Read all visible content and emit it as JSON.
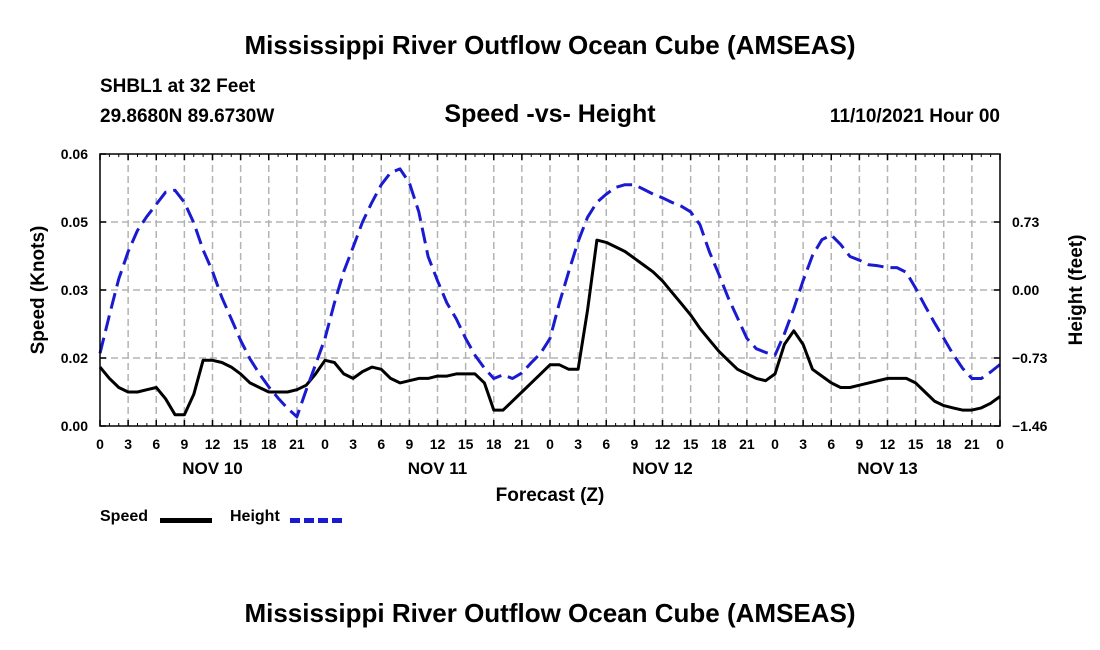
{
  "header": {
    "title": "Mississippi River Outflow Ocean Cube (AMSEAS)",
    "station": "SHBL1 at 32 Feet",
    "coords": "29.8680N  89.6730W",
    "subtitle": "Speed -vs- Height",
    "datetime": "11/10/2021 Hour 00"
  },
  "footer": {
    "title": "Mississippi River Outflow Ocean Cube (AMSEAS)"
  },
  "legend": {
    "speed_label": "Speed",
    "height_label": "Height"
  },
  "chart_data": {
    "type": "line",
    "title": "Speed -vs- Height",
    "xlabel": "Forecast (Z)",
    "ylabel": "Speed (Knots)",
    "y2label": "Height (feet)",
    "xlim": [
      0,
      96
    ],
    "ylim": [
      0,
      0.06
    ],
    "y2lim": [
      -1.46,
      1.46
    ],
    "grid": true,
    "x_ticks": [
      0,
      3,
      6,
      9,
      12,
      15,
      18,
      21,
      24,
      27,
      30,
      33,
      36,
      39,
      42,
      45,
      48,
      51,
      54,
      57,
      60,
      63,
      66,
      69,
      72,
      75,
      78,
      81,
      84,
      87,
      90,
      93,
      96
    ],
    "x_tick_labels": [
      "0",
      "3",
      "6",
      "9",
      "12",
      "15",
      "18",
      "21",
      "0",
      "3",
      "6",
      "9",
      "12",
      "15",
      "18",
      "21",
      "0",
      "3",
      "6",
      "9",
      "12",
      "15",
      "18",
      "21",
      "0",
      "3",
      "6",
      "9",
      "12",
      "15",
      "18",
      "21",
      "0"
    ],
    "day_labels": [
      {
        "label": "NOV 10",
        "x": 12
      },
      {
        "label": "NOV 11",
        "x": 36
      },
      {
        "label": "NOV 12",
        "x": 60
      },
      {
        "label": "NOV 13",
        "x": 84
      }
    ],
    "y_ticks": [
      0.0,
      0.015,
      0.03,
      0.045,
      0.06
    ],
    "y_tick_labels": [
      "0.00",
      "0.02",
      "0.03",
      "0.05",
      "0.06"
    ],
    "y2_ticks": [
      -1.46,
      -0.73,
      0.0,
      0.73
    ],
    "y2_tick_labels": [
      "−1.46",
      "−0.73",
      "0.00",
      "0.73"
    ],
    "series": [
      {
        "name": "Speed",
        "axis": "left",
        "color": "#000000",
        "dash": "solid",
        "points": [
          [
            0,
            0.013
          ],
          [
            1,
            0.0105
          ],
          [
            2,
            0.0085
          ],
          [
            3,
            0.0075
          ],
          [
            4,
            0.0075
          ],
          [
            5,
            0.008
          ],
          [
            6,
            0.0085
          ],
          [
            7,
            0.006
          ],
          [
            8,
            0.0025
          ],
          [
            9,
            0.0025
          ],
          [
            10,
            0.007
          ],
          [
            11,
            0.0145
          ],
          [
            12,
            0.0145
          ],
          [
            13,
            0.014
          ],
          [
            14,
            0.013
          ],
          [
            15,
            0.0115
          ],
          [
            16,
            0.0095
          ],
          [
            17,
            0.0085
          ],
          [
            18,
            0.0075
          ],
          [
            19,
            0.0075
          ],
          [
            20,
            0.0075
          ],
          [
            21,
            0.008
          ],
          [
            22,
            0.009
          ],
          [
            23,
            0.0115
          ],
          [
            24,
            0.0145
          ],
          [
            25,
            0.014
          ],
          [
            26,
            0.0115
          ],
          [
            27,
            0.0105
          ],
          [
            28,
            0.012
          ],
          [
            29,
            0.013
          ],
          [
            30,
            0.0125
          ],
          [
            31,
            0.0105
          ],
          [
            32,
            0.0095
          ],
          [
            33,
            0.01
          ],
          [
            34,
            0.0105
          ],
          [
            35,
            0.0105
          ],
          [
            36,
            0.011
          ],
          [
            37,
            0.011
          ],
          [
            38,
            0.0115
          ],
          [
            39,
            0.0115
          ],
          [
            40,
            0.0115
          ],
          [
            41,
            0.0095
          ],
          [
            42,
            0.0035
          ],
          [
            43,
            0.0035
          ],
          [
            44,
            0.0055
          ],
          [
            45,
            0.0075
          ],
          [
            46,
            0.0095
          ],
          [
            47,
            0.0115
          ],
          [
            48,
            0.0135
          ],
          [
            49,
            0.0135
          ],
          [
            50,
            0.0125
          ],
          [
            51,
            0.0125
          ],
          [
            52,
            0.0255
          ],
          [
            53,
            0.041
          ],
          [
            54,
            0.0405
          ],
          [
            55,
            0.0395
          ],
          [
            56,
            0.0385
          ],
          [
            57,
            0.037
          ],
          [
            58,
            0.0355
          ],
          [
            59,
            0.034
          ],
          [
            60,
            0.032
          ],
          [
            61,
            0.0295
          ],
          [
            62,
            0.027
          ],
          [
            63,
            0.0245
          ],
          [
            64,
            0.0215
          ],
          [
            65,
            0.019
          ],
          [
            66,
            0.0165
          ],
          [
            67,
            0.0145
          ],
          [
            68,
            0.0125
          ],
          [
            69,
            0.0115
          ],
          [
            70,
            0.0105
          ],
          [
            71,
            0.01
          ],
          [
            72,
            0.0115
          ],
          [
            73,
            0.018
          ],
          [
            74,
            0.021
          ],
          [
            75,
            0.018
          ],
          [
            76,
            0.0125
          ],
          [
            77,
            0.011
          ],
          [
            78,
            0.0095
          ],
          [
            79,
            0.0085
          ],
          [
            80,
            0.0085
          ],
          [
            81,
            0.009
          ],
          [
            82,
            0.0095
          ],
          [
            83,
            0.01
          ],
          [
            84,
            0.0105
          ],
          [
            85,
            0.0105
          ],
          [
            86,
            0.0105
          ],
          [
            87,
            0.0095
          ],
          [
            88,
            0.0075
          ],
          [
            89,
            0.0055
          ],
          [
            90,
            0.0045
          ],
          [
            91,
            0.004
          ],
          [
            92,
            0.0035
          ],
          [
            93,
            0.0035
          ],
          [
            94,
            0.004
          ],
          [
            95,
            0.005
          ],
          [
            96,
            0.0065
          ]
        ]
      },
      {
        "name": "Height",
        "axis": "right",
        "color": "#1a1ad0",
        "dash": "dashed",
        "points": [
          [
            0,
            -0.68
          ],
          [
            1,
            -0.27
          ],
          [
            2,
            0.12
          ],
          [
            3,
            0.41
          ],
          [
            4,
            0.64
          ],
          [
            5,
            0.79
          ],
          [
            6,
            0.92
          ],
          [
            7,
            1.05
          ],
          [
            8,
            1.07
          ],
          [
            9,
            0.94
          ],
          [
            10,
            0.72
          ],
          [
            11,
            0.43
          ],
          [
            12,
            0.2
          ],
          [
            13,
            -0.08
          ],
          [
            14,
            -0.31
          ],
          [
            15,
            -0.54
          ],
          [
            16,
            -0.74
          ],
          [
            17,
            -0.9
          ],
          [
            18,
            -1.04
          ],
          [
            19,
            -1.16
          ],
          [
            20,
            -1.27
          ],
          [
            21,
            -1.36
          ],
          [
            22,
            -1.07
          ],
          [
            23,
            -0.8
          ],
          [
            24,
            -0.52
          ],
          [
            25,
            -0.14
          ],
          [
            26,
            0.2
          ],
          [
            27,
            0.46
          ],
          [
            28,
            0.73
          ],
          [
            29,
            0.94
          ],
          [
            30,
            1.13
          ],
          [
            31,
            1.26
          ],
          [
            32,
            1.3
          ],
          [
            33,
            1.15
          ],
          [
            34,
            0.84
          ],
          [
            35,
            0.36
          ],
          [
            36,
            0.1
          ],
          [
            37,
            -0.14
          ],
          [
            38,
            -0.31
          ],
          [
            39,
            -0.52
          ],
          [
            40,
            -0.7
          ],
          [
            41,
            -0.84
          ],
          [
            42,
            -0.95
          ],
          [
            43,
            -0.91
          ],
          [
            44,
            -0.95
          ],
          [
            45,
            -0.89
          ],
          [
            46,
            -0.78
          ],
          [
            47,
            -0.68
          ],
          [
            48,
            -0.52
          ],
          [
            49,
            -0.14
          ],
          [
            50,
            0.2
          ],
          [
            51,
            0.52
          ],
          [
            52,
            0.78
          ],
          [
            53,
            0.94
          ],
          [
            54,
            1.03
          ],
          [
            55,
            1.1
          ],
          [
            56,
            1.13
          ],
          [
            57,
            1.13
          ],
          [
            58,
            1.08
          ],
          [
            59,
            1.03
          ],
          [
            60,
            0.99
          ],
          [
            61,
            0.94
          ],
          [
            62,
            0.9
          ],
          [
            63,
            0.84
          ],
          [
            64,
            0.7
          ],
          [
            65,
            0.41
          ],
          [
            66,
            0.17
          ],
          [
            67,
            -0.08
          ],
          [
            68,
            -0.3
          ],
          [
            69,
            -0.52
          ],
          [
            70,
            -0.63
          ],
          [
            71,
            -0.67
          ],
          [
            72,
            -0.7
          ],
          [
            73,
            -0.47
          ],
          [
            74,
            -0.2
          ],
          [
            75,
            0.1
          ],
          [
            76,
            0.37
          ],
          [
            77,
            0.54
          ],
          [
            78,
            0.59
          ],
          [
            79,
            0.49
          ],
          [
            80,
            0.36
          ],
          [
            81,
            0.32
          ],
          [
            82,
            0.27
          ],
          [
            83,
            0.26
          ],
          [
            84,
            0.24
          ],
          [
            85,
            0.24
          ],
          [
            86,
            0.19
          ],
          [
            87,
            0.02
          ],
          [
            88,
            -0.17
          ],
          [
            89,
            -0.35
          ],
          [
            90,
            -0.52
          ],
          [
            91,
            -0.69
          ],
          [
            92,
            -0.84
          ],
          [
            93,
            -0.95
          ],
          [
            94,
            -0.95
          ],
          [
            95,
            -0.88
          ],
          [
            96,
            -0.8
          ]
        ]
      }
    ]
  }
}
